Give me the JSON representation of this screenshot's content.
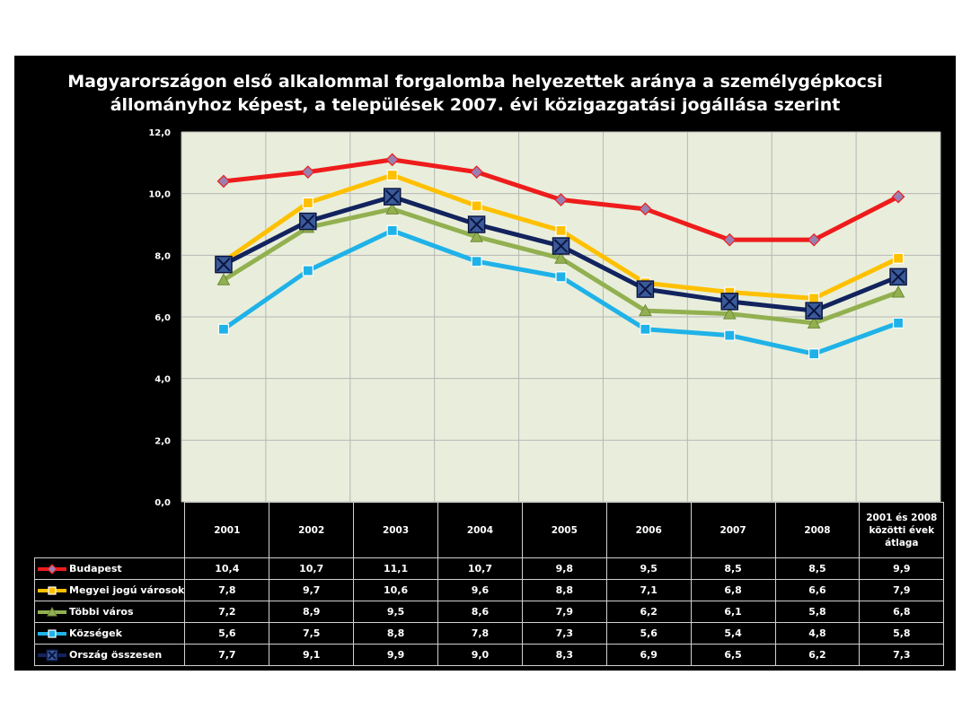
{
  "title_line1": "Magyarországon első alkalommal forgalomba helyezettek aránya a személygépkocsi",
  "title_line2": "állományhoz képest, a települések 2007. évi közigazgatási jogállása szerint",
  "chart_data": {
    "type": "line",
    "categories": [
      "2001",
      "2002",
      "2003",
      "2004",
      "2005",
      "2006",
      "2007",
      "2008",
      "2001 és 2008 közötti évek átlaga"
    ],
    "category_lines": [
      [
        "2001"
      ],
      [
        "2002"
      ],
      [
        "2003"
      ],
      [
        "2004"
      ],
      [
        "2005"
      ],
      [
        "2006"
      ],
      [
        "2007"
      ],
      [
        "2008"
      ],
      [
        "2001 és 2008",
        "közötti évek",
        "átlaga"
      ]
    ],
    "ylim": [
      0,
      12
    ],
    "yticks": [
      "0,0",
      "2,0",
      "4,0",
      "6,0",
      "8,0",
      "10,0",
      "12,0"
    ],
    "grid": true,
    "legend_placement": "data-table-left",
    "series": [
      {
        "name": "Budapest",
        "color": "#ee1c1c",
        "marker": "diamond",
        "values": [
          10.4,
          10.7,
          11.1,
          10.7,
          9.8,
          9.5,
          8.5,
          8.5,
          9.9
        ],
        "labels": [
          "10,4",
          "10,7",
          "11,1",
          "10,7",
          "9,8",
          "9,5",
          "8,5",
          "8,5",
          "9,9"
        ]
      },
      {
        "name": "Megyei jogú városok",
        "color": "#ffc000",
        "marker": "square",
        "values": [
          7.8,
          9.7,
          10.6,
          9.6,
          8.8,
          7.1,
          6.8,
          6.6,
          7.9
        ],
        "labels": [
          "7,8",
          "9,7",
          "10,6",
          "9,6",
          "8,8",
          "7,1",
          "6,8",
          "6,6",
          "7,9"
        ]
      },
      {
        "name": "Többi város",
        "color": "#92b050",
        "marker": "triangle",
        "values": [
          7.2,
          8.9,
          9.5,
          8.6,
          7.9,
          6.2,
          6.1,
          5.8,
          6.8
        ],
        "labels": [
          "7,2",
          "8,9",
          "9,5",
          "8,6",
          "7,9",
          "6,2",
          "6,1",
          "5,8",
          "6,8"
        ]
      },
      {
        "name": "Községek",
        "color": "#1fb2e8",
        "marker": "square",
        "values": [
          5.6,
          7.5,
          8.8,
          7.8,
          7.3,
          5.6,
          5.4,
          4.8,
          5.8
        ],
        "labels": [
          "5,6",
          "7,5",
          "8,8",
          "7,8",
          "7,3",
          "5,6",
          "5,4",
          "4,8",
          "5,8"
        ]
      },
      {
        "name": "Ország összesen",
        "color": "#12235e",
        "marker": "x-square",
        "values": [
          7.7,
          9.1,
          9.9,
          9.0,
          8.3,
          6.9,
          6.5,
          6.2,
          7.3
        ],
        "labels": [
          "7,7",
          "9,1",
          "9,9",
          "9,0",
          "8,3",
          "6,9",
          "6,5",
          "6,2",
          "7,3"
        ]
      }
    ]
  },
  "colors": {
    "background": "#000000",
    "plot_area": "#e8eedb",
    "gridline": "#b7b7b7",
    "text": "#ffffff"
  }
}
